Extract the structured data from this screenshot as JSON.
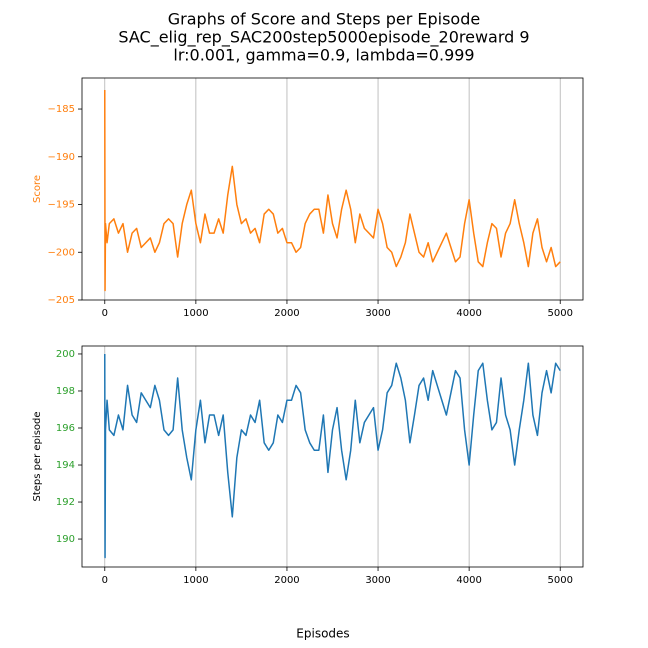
{
  "figure": {
    "title": [
      "Graphs of Score and Steps per Episode",
      "SAC_elig_rep_SAC200step5000episode_20reward 9",
      "lr:0.001, gamma=0.9, lambda=0.999"
    ],
    "xlabel": "Episodes"
  },
  "chart_data": [
    {
      "type": "line",
      "ylabel": "Score",
      "ylabel_color": "#ff7f0e",
      "ytick_color": "#ff7f0e",
      "xlim": [
        -250,
        5250
      ],
      "xticks": [
        0,
        1000,
        2000,
        3000,
        4000,
        5000
      ],
      "ylim": [
        -205,
        -181.75
      ],
      "yticks": [
        {
          "value": -205,
          "label": "−205"
        },
        {
          "value": -200,
          "label": "−200"
        },
        {
          "value": -195,
          "label": "−195"
        },
        {
          "value": -190,
          "label": "−190"
        },
        {
          "value": -185,
          "label": "−185"
        }
      ],
      "grid": "x",
      "x": [
        0,
        3,
        8,
        25,
        50,
        100,
        150,
        200,
        250,
        300,
        350,
        400,
        450,
        500,
        550,
        600,
        650,
        700,
        750,
        800,
        850,
        900,
        950,
        1000,
        1050,
        1100,
        1150,
        1200,
        1250,
        1300,
        1350,
        1400,
        1450,
        1500,
        1550,
        1600,
        1650,
        1700,
        1750,
        1800,
        1850,
        1900,
        1950,
        2000,
        2050,
        2100,
        2150,
        2200,
        2250,
        2300,
        2350,
        2400,
        2450,
        2500,
        2550,
        2600,
        2650,
        2700,
        2750,
        2800,
        2850,
        2900,
        2950,
        3000,
        3050,
        3100,
        3150,
        3200,
        3250,
        3300,
        3350,
        3400,
        3450,
        3500,
        3550,
        3600,
        3650,
        3700,
        3750,
        3800,
        3850,
        3900,
        3950,
        4000,
        4050,
        4100,
        4150,
        4200,
        4250,
        4300,
        4350,
        4400,
        4450,
        4500,
        4550,
        4600,
        4650,
        4700,
        4750,
        4800,
        4850,
        4900,
        4950,
        5000
      ],
      "series": [
        {
          "name": "Score",
          "color": "#ff7f0e",
          "values": [
            -183,
            -204,
            -197,
            -199,
            -197,
            -196.5,
            -198,
            -197,
            -200,
            -198,
            -197.5,
            -199.5,
            -199,
            -198.5,
            -200,
            -199,
            -197,
            -196.5,
            -197,
            -200.5,
            -197,
            -195,
            -193.5,
            -197,
            -199,
            -196,
            -198,
            -198,
            -196.5,
            -198,
            -194,
            -191,
            -195,
            -197,
            -196.5,
            -198,
            -197.5,
            -199,
            -196,
            -195.5,
            -196,
            -198,
            -197.5,
            -199,
            -199,
            -200,
            -199.5,
            -197,
            -196,
            -195.5,
            -195.5,
            -198,
            -194,
            -197,
            -198.5,
            -195.5,
            -193.5,
            -195.5,
            -199,
            -196,
            -197.5,
            -198,
            -198.5,
            -195.5,
            -197,
            -199.5,
            -200,
            -201.5,
            -200.5,
            -199,
            -196,
            -198,
            -200,
            -200.5,
            -199,
            -201,
            -200,
            -199,
            -198,
            -199.5,
            -201,
            -200.5,
            -197,
            -194.5,
            -198,
            -201,
            -201.5,
            -199,
            -197,
            -197.5,
            -200.5,
            -198,
            -197,
            -194.5,
            -197,
            -199,
            -201.5,
            -198,
            -196.5,
            -199.5,
            -201,
            -199.5,
            -201.5,
            -201
          ]
        }
      ]
    },
    {
      "type": "line",
      "ylabel": "Steps per episode",
      "ylabel_color": "#000000",
      "ytick_color": "#2ca02c",
      "xlim": [
        -250,
        5250
      ],
      "xticks": [
        0,
        1000,
        2000,
        3000,
        4000,
        5000
      ],
      "ylim": [
        188.49,
        200.43
      ],
      "yticks": [
        190,
        192,
        194,
        196,
        198,
        200
      ],
      "grid": "x",
      "x": [
        0,
        3,
        8,
        25,
        50,
        100,
        150,
        200,
        250,
        300,
        350,
        400,
        450,
        500,
        550,
        600,
        650,
        700,
        750,
        800,
        850,
        900,
        950,
        1000,
        1050,
        1100,
        1150,
        1200,
        1250,
        1300,
        1350,
        1400,
        1450,
        1500,
        1550,
        1600,
        1650,
        1700,
        1750,
        1800,
        1850,
        1900,
        1950,
        2000,
        2050,
        2100,
        2150,
        2200,
        2250,
        2300,
        2350,
        2400,
        2450,
        2500,
        2550,
        2600,
        2650,
        2700,
        2750,
        2800,
        2850,
        2900,
        2950,
        3000,
        3050,
        3100,
        3150,
        3200,
        3250,
        3300,
        3350,
        3400,
        3450,
        3500,
        3550,
        3600,
        3650,
        3700,
        3750,
        3800,
        3850,
        3900,
        3950,
        4000,
        4050,
        4100,
        4150,
        4200,
        4250,
        4300,
        4350,
        4400,
        4450,
        4500,
        4550,
        4600,
        4650,
        4700,
        4750,
        4800,
        4850,
        4900,
        4950,
        5000
      ],
      "series": [
        {
          "name": "Steps per episode",
          "color": "#1f77b4",
          "values": [
            200,
            189,
            195.9,
            197.5,
            195.9,
            195.6,
            196.7,
            195.9,
            198.3,
            196.7,
            196.3,
            197.9,
            197.5,
            197.1,
            198.3,
            197.5,
            195.9,
            195.6,
            195.9,
            198.7,
            195.9,
            194.4,
            193.2,
            195.9,
            197.5,
            195.2,
            196.7,
            196.7,
            195.6,
            196.7,
            193.6,
            191.2,
            194.4,
            195.9,
            195.6,
            196.7,
            196.3,
            197.5,
            195.2,
            194.8,
            195.2,
            196.7,
            196.3,
            197.5,
            197.5,
            198.3,
            197.9,
            195.9,
            195.2,
            194.8,
            194.8,
            196.7,
            193.6,
            195.9,
            197.1,
            194.8,
            193.2,
            194.8,
            197.5,
            195.2,
            196.3,
            196.7,
            197.1,
            194.8,
            195.9,
            197.9,
            198.3,
            199.5,
            198.7,
            197.5,
            195.2,
            196.7,
            198.3,
            198.7,
            197.5,
            199.1,
            198.3,
            197.5,
            196.7,
            197.9,
            199.1,
            198.7,
            195.9,
            194.0,
            196.7,
            199.1,
            199.5,
            197.5,
            195.9,
            196.3,
            198.7,
            196.7,
            195.9,
            194.0,
            195.9,
            197.5,
            199.5,
            196.7,
            195.6,
            197.9,
            199.1,
            197.9,
            199.5,
            199.1
          ]
        }
      ]
    }
  ]
}
